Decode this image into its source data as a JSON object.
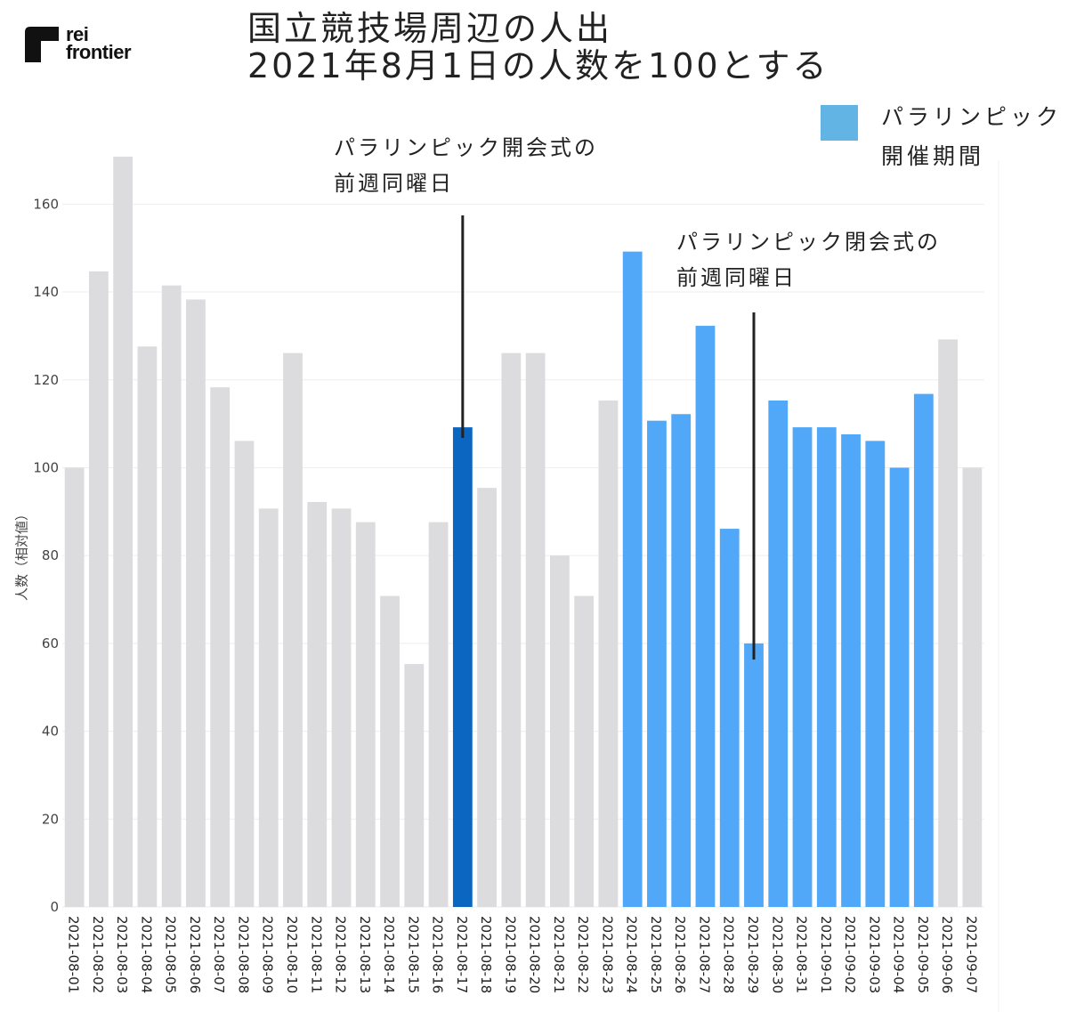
{
  "logo": {
    "line1": "rei",
    "line2": "frontier"
  },
  "title": {
    "line1": "国立競技場周辺の人出",
    "line2": "2021年8月1日の人数を100とする"
  },
  "legend": {
    "color": "#62b4e4",
    "line1": "パラリンピック",
    "line2": "開催期間"
  },
  "annotations": [
    {
      "line1": "パラリンピック開会式の",
      "line2": "前週同曜日",
      "date": "2021-08-17"
    },
    {
      "line1": "パラリンピック閉会式の",
      "line2": "前週同曜日",
      "date": "2021-08-29"
    }
  ],
  "colors": {
    "default": "#dcdcdf",
    "paralympic": "#52a8f8",
    "highlight": "#0b66c2",
    "grid": "#eeeeee",
    "axis_text": "#444444"
  },
  "chart_data": {
    "type": "bar",
    "ylabel": "人数（相対値）",
    "ylim": [
      0,
      170
    ],
    "yticks": [
      0,
      20,
      40,
      60,
      80,
      100,
      120,
      140,
      160
    ],
    "grid": true,
    "legend_position": "top-right",
    "categories": [
      "2021-08-01",
      "2021-08-02",
      "2021-08-03",
      "2021-08-04",
      "2021-08-05",
      "2021-08-06",
      "2021-08-07",
      "2021-08-08",
      "2021-08-09",
      "2021-08-10",
      "2021-08-11",
      "2021-08-12",
      "2021-08-13",
      "2021-08-14",
      "2021-08-15",
      "2021-08-16",
      "2021-08-17",
      "2021-08-18",
      "2021-08-19",
      "2021-08-20",
      "2021-08-21",
      "2021-08-22",
      "2021-08-23",
      "2021-08-24",
      "2021-08-25",
      "2021-08-26",
      "2021-08-27",
      "2021-08-28",
      "2021-08-29",
      "2021-08-30",
      "2021-08-31",
      "2021-09-01",
      "2021-09-02",
      "2021-09-03",
      "2021-09-04",
      "2021-09-05",
      "2021-09-06",
      "2021-09-07"
    ],
    "values": [
      100,
      144.7,
      170.8,
      127.6,
      141.5,
      138.3,
      118.3,
      106.1,
      90.7,
      126.1,
      92.2,
      90.7,
      87.6,
      70.8,
      55.3,
      87.6,
      109.2,
      95.4,
      126.1,
      126.1,
      80.0,
      70.8,
      115.3,
      149.2,
      110.7,
      112.2,
      132.3,
      86.1,
      60.0,
      115.3,
      109.2,
      109.2,
      107.6,
      106.1,
      100.0,
      116.8,
      129.2,
      100
    ],
    "paralympic_period": [
      "2021-08-24",
      "2021-09-05"
    ],
    "highlighted": [
      "2021-08-17"
    ]
  }
}
